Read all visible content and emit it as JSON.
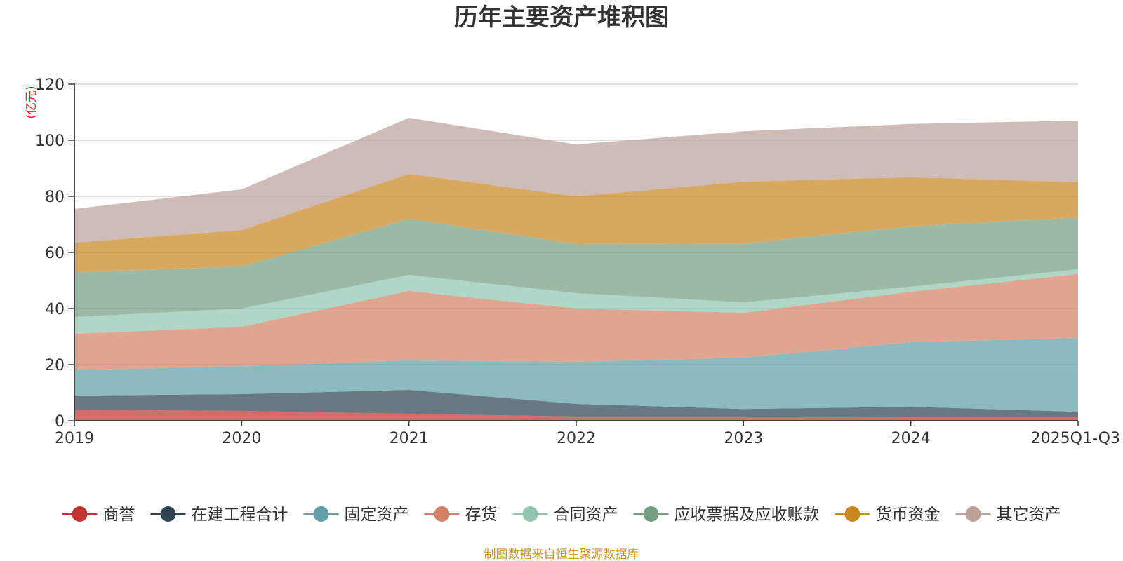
{
  "chart_data": {
    "type": "area",
    "stacked": true,
    "title": "历年主要资产堆积图",
    "ylabel": "(亿元)",
    "xlabel": "",
    "categories": [
      "2019",
      "2020",
      "2021",
      "2022",
      "2023",
      "2024",
      "2025Q1-Q3"
    ],
    "ylim": [
      0,
      120
    ],
    "yticks": [
      0,
      20,
      40,
      60,
      80,
      100,
      120
    ],
    "grid": true,
    "legend_position": "bottom",
    "series": [
      {
        "name": "商誉",
        "color": "#c23531",
        "values": [
          4.0,
          3.5,
          2.5,
          1.5,
          1.5,
          1.2,
          1.2
        ]
      },
      {
        "name": "在建工程合计",
        "color": "#2f4554",
        "values": [
          5.0,
          6.0,
          8.5,
          4.5,
          2.7,
          3.8,
          2.0
        ]
      },
      {
        "name": "固定资产",
        "color": "#61a0a8",
        "values": [
          9.0,
          10.0,
          10.5,
          15.0,
          18.3,
          23.0,
          26.3
        ]
      },
      {
        "name": "存货",
        "color": "#d48265",
        "values": [
          13.0,
          14.0,
          24.8,
          19.0,
          16.0,
          18.0,
          22.8
        ]
      },
      {
        "name": "合同资产",
        "color": "#91c7ae",
        "values": [
          6.0,
          6.5,
          5.7,
          5.5,
          3.7,
          1.8,
          1.7
        ]
      },
      {
        "name": "应收票据及应收账款",
        "color": "#749f83",
        "values": [
          16.0,
          15.0,
          20.0,
          17.5,
          21.0,
          21.5,
          18.5
        ]
      },
      {
        "name": "货币资金",
        "color": "#ca8622",
        "values": [
          10.5,
          13.0,
          16.0,
          17.0,
          22.0,
          17.5,
          12.5
        ]
      },
      {
        "name": "其它资产",
        "color": "#bda29a",
        "values": [
          12.0,
          14.5,
          20.0,
          18.5,
          18.0,
          19.0,
          22.0
        ]
      }
    ],
    "source_note": "制图数据来自恒生聚源数据库"
  }
}
